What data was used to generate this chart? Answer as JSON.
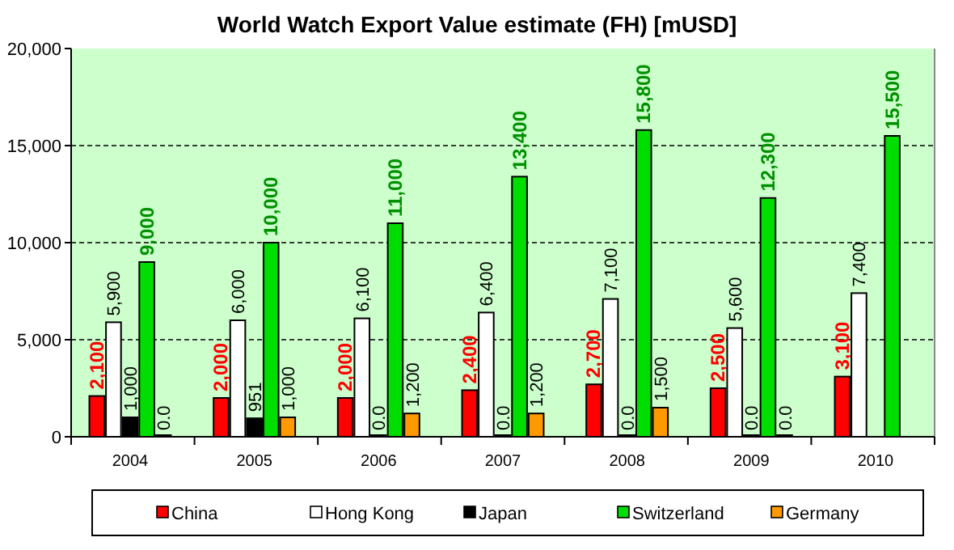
{
  "chart_data": {
    "type": "bar",
    "title": "World Watch Export Value estimate (FH) [mUSD]",
    "categories": [
      "2004",
      "2005",
      "2006",
      "2007",
      "2008",
      "2009",
      "2010"
    ],
    "series": [
      {
        "name": "China",
        "color": "#ff0000",
        "values": [
          2100,
          2000,
          2000,
          2400,
          2700,
          2500,
          3100
        ],
        "value_labels": [
          "2,100",
          "2,000",
          "2,000",
          "2,400",
          "2,700",
          "2,500",
          "3,100"
        ]
      },
      {
        "name": "Hong Kong",
        "color": "#ffffff",
        "values": [
          5900,
          6000,
          6100,
          6400,
          7100,
          5600,
          7400
        ],
        "value_labels": [
          "5,900",
          "6,000",
          "6,100",
          "6,400",
          "7,100",
          "5,600",
          "7,400"
        ]
      },
      {
        "name": "Japan",
        "color": "#000000",
        "values": [
          1000,
          951,
          0,
          0,
          0,
          0,
          null
        ],
        "value_labels": [
          "1,000",
          "951",
          "0.0",
          "0.0",
          "0.0",
          "0.0",
          null
        ]
      },
      {
        "name": "Switzerland",
        "color": "#00dd00",
        "values": [
          9000,
          10000,
          11000,
          13400,
          15800,
          12300,
          15500
        ],
        "value_labels": [
          "9,000",
          "10,000",
          "11,000",
          "13,400",
          "15,800",
          "12,300",
          "15,500"
        ]
      },
      {
        "name": "Germany",
        "color": "#ff9900",
        "values": [
          0,
          1000,
          1200,
          1200,
          1500,
          0,
          null
        ],
        "value_labels": [
          "0.0",
          "1,000",
          "1,200",
          "1,200",
          "1,500",
          "0.0",
          null
        ]
      }
    ],
    "ylim": [
      0,
      20000
    ],
    "yticks": [
      {
        "value": 0,
        "label": "0"
      },
      {
        "value": 5000,
        "label": "5,000"
      },
      {
        "value": 10000,
        "label": "10,000"
      },
      {
        "value": 15000,
        "label": "15,000"
      },
      {
        "value": 20000,
        "label": "20,000"
      }
    ],
    "grid": "y",
    "legend": "bottom"
  }
}
